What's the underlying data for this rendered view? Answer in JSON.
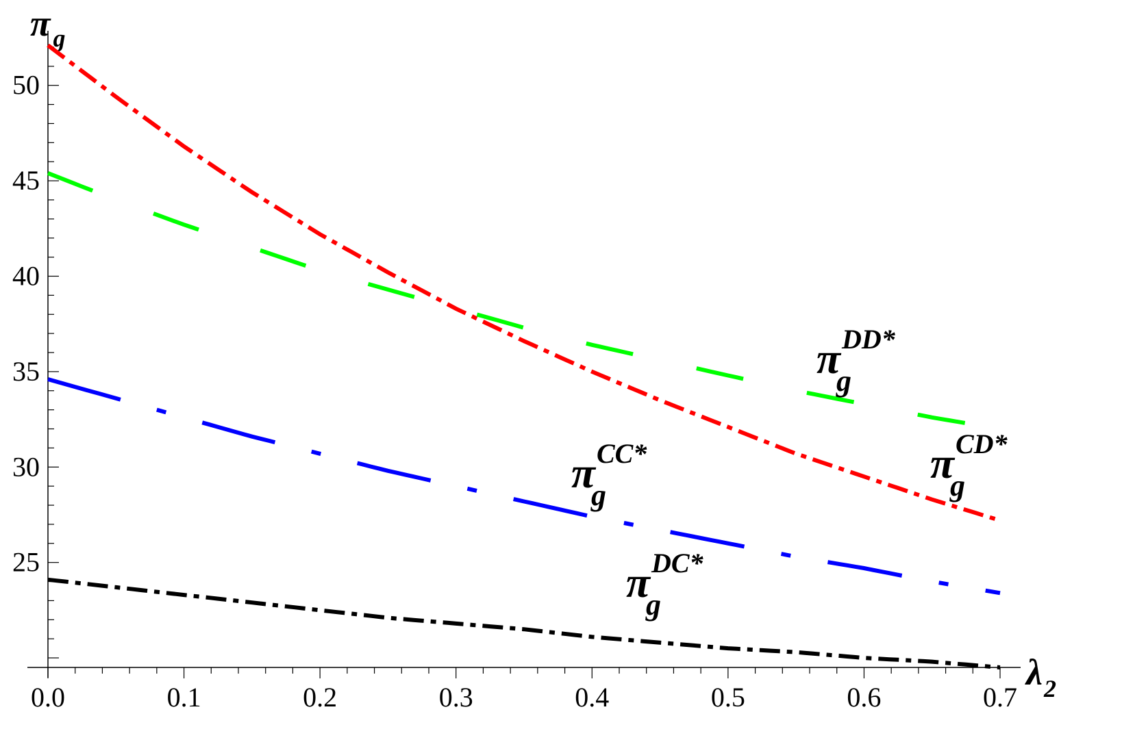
{
  "chart_data": {
    "type": "line",
    "title": "",
    "xlabel": {
      "symbol": "λ",
      "subscript": "2"
    },
    "ylabel": {
      "symbol": "π",
      "subscript": "g"
    },
    "xlim": [
      0.0,
      0.7
    ],
    "ylim": [
      19.5,
      52.5
    ],
    "x_ticks": [
      0.0,
      0.1,
      0.2,
      0.3,
      0.4,
      0.5,
      0.6,
      0.7
    ],
    "x_tick_labels": [
      "0.0",
      "0.1",
      "0.2",
      "0.3",
      "0.4",
      "0.5",
      "0.6",
      "0.7"
    ],
    "x_minor_step": 0.02,
    "y_ticks": [
      25,
      30,
      35,
      40,
      45,
      50
    ],
    "y_tick_labels": [
      "25",
      "30",
      "35",
      "40",
      "45",
      "50"
    ],
    "y_minor_step": 1,
    "grid": false,
    "series": [
      {
        "key": "CD",
        "label": {
          "symbol": "π",
          "subscript": "g",
          "superscript": "CD*"
        },
        "color": "#ff0000",
        "style": "dash-dot",
        "x": [
          0.0,
          0.05,
          0.1,
          0.15,
          0.2,
          0.25,
          0.3,
          0.35,
          0.4,
          0.45,
          0.5,
          0.55,
          0.6,
          0.65,
          0.7
        ],
        "values": [
          52.1,
          49.4,
          46.8,
          44.4,
          42.2,
          40.2,
          38.3,
          36.6,
          35.0,
          33.5,
          32.1,
          30.7,
          29.5,
          28.3,
          27.2
        ]
      },
      {
        "key": "DD",
        "label": {
          "symbol": "π",
          "subscript": "g",
          "superscript": "DD*"
        },
        "color": "#00ff00",
        "style": "long-dash",
        "x": [
          0.0,
          0.05,
          0.1,
          0.15,
          0.2,
          0.25,
          0.3,
          0.35,
          0.4,
          0.45,
          0.5,
          0.55,
          0.6,
          0.65,
          0.7
        ],
        "values": [
          45.4,
          44.0,
          42.7,
          41.5,
          40.3,
          39.3,
          38.3,
          37.3,
          36.4,
          35.6,
          34.8,
          34.0,
          33.3,
          32.6,
          32.0
        ]
      },
      {
        "key": "CC",
        "label": {
          "symbol": "π",
          "subscript": "g",
          "superscript": "CC*"
        },
        "color": "#0000ff",
        "style": "long-dash-dot",
        "x": [
          0.0,
          0.05,
          0.1,
          0.15,
          0.2,
          0.25,
          0.3,
          0.35,
          0.4,
          0.45,
          0.5,
          0.55,
          0.6,
          0.65,
          0.7
        ],
        "values": [
          34.6,
          33.6,
          32.6,
          31.6,
          30.7,
          29.8,
          29.0,
          28.2,
          27.4,
          26.7,
          26.0,
          25.3,
          24.7,
          24.0,
          23.4
        ]
      },
      {
        "key": "DC",
        "label": {
          "symbol": "π",
          "subscript": "g",
          "superscript": "DC*"
        },
        "color": "#000000",
        "style": "dash-dot",
        "x": [
          0.0,
          0.05,
          0.1,
          0.15,
          0.2,
          0.25,
          0.3,
          0.35,
          0.4,
          0.45,
          0.5,
          0.55,
          0.6,
          0.65,
          0.7
        ],
        "values": [
          24.1,
          23.7,
          23.3,
          22.9,
          22.5,
          22.1,
          21.8,
          21.5,
          21.1,
          20.8,
          20.5,
          20.3,
          20.0,
          19.8,
          19.5
        ]
      }
    ]
  }
}
